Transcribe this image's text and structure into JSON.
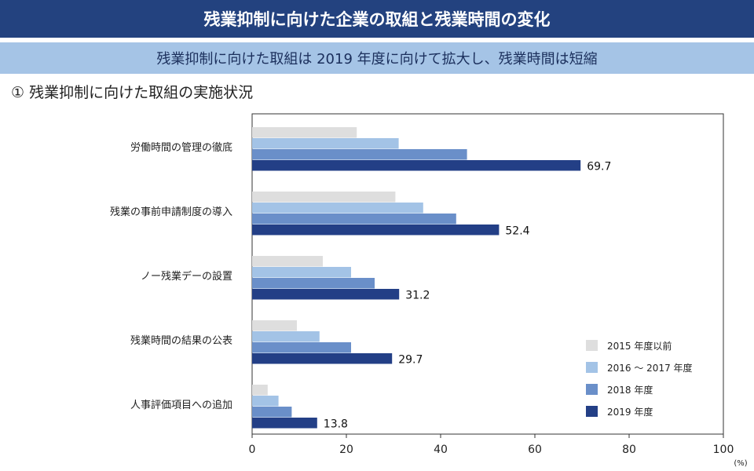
{
  "header": {
    "title": "残業抑制に向けた企業の取組と残業時間の変化"
  },
  "subheader": {
    "text": "残業抑制に向けた取組は 2019 年度に向けて拡大し、残業時間は短縮"
  },
  "section": {
    "title": "① 残業抑制に向けた取組の実施状況"
  },
  "chart_data": {
    "type": "bar",
    "orientation": "horizontal",
    "categories": [
      "労働時間の管理の徹底",
      "残業の事前申請制度の導入",
      "ノー残業デーの設置",
      "残業時間の結果の公表",
      "人事評価項目への追加"
    ],
    "series": [
      {
        "name": "2015 年度以前",
        "color": "#dedede",
        "values": [
          22.2,
          30.4,
          15.0,
          9.5,
          3.3
        ]
      },
      {
        "name": "2016 ～ 2017 年度",
        "color": "#a3c3e6",
        "values": [
          31.1,
          36.3,
          21.0,
          14.3,
          5.6
        ]
      },
      {
        "name": "2018 年度",
        "color": "#6a8fc9",
        "values": [
          45.6,
          43.3,
          26.0,
          21.0,
          8.4
        ]
      },
      {
        "name": "2019 年度",
        "color": "#233f86",
        "values": [
          69.7,
          52.4,
          31.2,
          29.7,
          13.8
        ]
      }
    ],
    "value_labels": [
      "69.7",
      "52.4",
      "31.2",
      "29.7",
      "13.8"
    ],
    "xlim": [
      0,
      100
    ],
    "xticks": [
      "0",
      "20",
      "40",
      "60",
      "80",
      "100"
    ],
    "unit_label": "(%)",
    "legend_position": "bottom-right"
  }
}
